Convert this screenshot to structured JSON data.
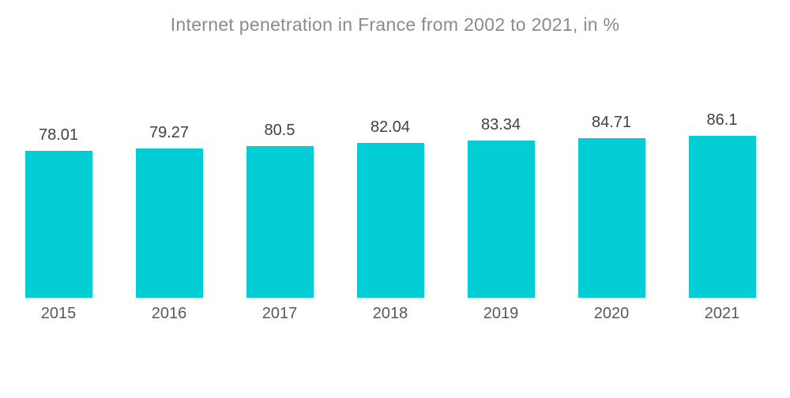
{
  "chart_data": {
    "type": "bar",
    "title": "Internet penetration in France from 2002 to 2021, in %",
    "xlabel": "",
    "ylabel": "",
    "unit": "%",
    "categories": [
      "2015",
      "2016",
      "2017",
      "2018",
      "2019",
      "2020",
      "2021"
    ],
    "values": [
      78.01,
      79.27,
      80.5,
      82.04,
      83.34,
      84.71,
      86.1
    ],
    "value_labels": [
      "78.01",
      "79.27",
      "80.5",
      "82.04",
      "83.34",
      "84.71",
      "86.1"
    ],
    "grid": false,
    "legend": false,
    "axes_hidden": true,
    "value_labels_position": "above-bars",
    "colors": {
      "bar": "#03cdd5",
      "title": "#8b8b8b",
      "value_label": "#414141",
      "tick_label": "#595959",
      "background": "#ffffff"
    }
  }
}
